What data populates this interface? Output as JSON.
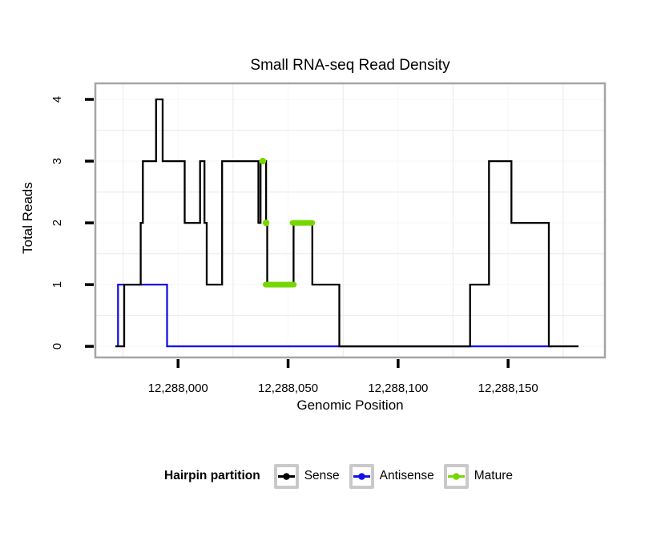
{
  "chart_data": {
    "type": "line",
    "title": "Small RNA-seq Read Density",
    "xlabel": "Genomic Position",
    "ylabel": "Total Reads",
    "x_ticks": [
      12288000,
      12288050,
      12288100,
      12288150
    ],
    "x_tick_labels": [
      "12,288,000",
      "12,288,050",
      "12,288,100",
      "12,288,150"
    ],
    "y_ticks": [
      0,
      1,
      2,
      3,
      4
    ],
    "y_tick_labels": [
      "0",
      "1",
      "2",
      "3",
      "4"
    ],
    "xlim": [
      12287962.4,
      12288194.0
    ],
    "ylim": [
      -0.18,
      4.26
    ],
    "grid": {
      "x_minor": [
        12287975,
        12288025,
        12288075,
        12288125,
        12288175
      ],
      "y_minor": [
        0.5,
        1.5,
        2.5,
        3.5
      ],
      "x_major": [
        12288000,
        12288050,
        12288100,
        12288150
      ],
      "y_major": [
        0,
        1,
        2,
        3,
        4
      ],
      "minor_color": "#eeeeee",
      "major_color": "#fafafa"
    },
    "panel_border_color": "#a5a5a5",
    "axis_tick_color": "#000000",
    "legend": {
      "title": "Hairpin partition",
      "entries": [
        {
          "label": "Sense",
          "color": "#000000"
        },
        {
          "label": "Antisense",
          "color": "#1212e8"
        },
        {
          "label": "Mature",
          "color": "#76d700"
        }
      ]
    },
    "series": [
      {
        "name": "Antisense",
        "color": "#1212e8",
        "kind": "step",
        "steps": [
          [
            12287972.7,
            0
          ],
          [
            12287972.7,
            1
          ],
          [
            12287995,
            0
          ]
        ],
        "end": 12288170
      },
      {
        "name": "Sense",
        "color": "#000000",
        "kind": "step",
        "steps": [
          [
            12287971.5,
            0
          ],
          [
            12287975.5,
            1
          ],
          [
            12287983,
            2
          ],
          [
            12287984,
            3
          ],
          [
            12287990,
            4
          ],
          [
            12287993,
            3
          ],
          [
            12288003,
            2
          ],
          [
            12288010,
            3
          ],
          [
            12288012,
            2
          ],
          [
            12288013,
            1
          ],
          [
            12288020,
            3
          ],
          [
            12288036.5,
            2
          ],
          [
            12288037.5,
            3
          ],
          [
            12288040,
            2
          ],
          [
            12288040.5,
            1
          ],
          [
            12288052.5,
            2
          ],
          [
            12288061,
            1
          ],
          [
            12288073.3,
            0
          ],
          [
            12288132.7,
            1
          ],
          [
            12288141.3,
            3
          ],
          [
            12288151.5,
            2
          ],
          [
            12288168.5,
            0
          ]
        ],
        "end": 12288182
      },
      {
        "name": "Mature",
        "color": "#76d700",
        "kind": "overlay",
        "points": [
          [
            12288038.5,
            3
          ],
          [
            12288040,
            2
          ]
        ],
        "segments": [
          [
            12288039.8,
            12288052.6,
            1
          ],
          [
            12288052,
            12288061,
            2
          ]
        ]
      }
    ]
  }
}
